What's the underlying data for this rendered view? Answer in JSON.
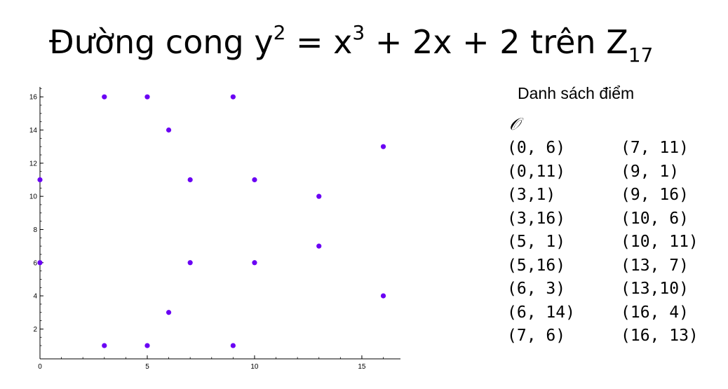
{
  "title": {
    "prefix": "Đường cong y",
    "exp1": "2",
    "mid": " = x",
    "exp2": "3",
    "suffix": " + 2x + 2 trên Z",
    "subscript": "17"
  },
  "list": {
    "heading": "Danh sách điểm",
    "infinity_symbol": "𝒪",
    "left_column": [
      "(0, 6)",
      "(0,11)",
      "(3,1)",
      "(3,16)",
      "(5, 1)",
      "(5,16)",
      "(6, 3)",
      "(6, 14)",
      "(7, 6)"
    ],
    "right_column": [
      "(7, 11)",
      "(9, 1)",
      "(9, 16)",
      "(10, 6)",
      "(10, 11)",
      "(13, 7)",
      "(13,10)",
      "(16, 4)",
      "(16, 13)"
    ]
  },
  "chart_data": {
    "type": "scatter",
    "title": "",
    "xlabel": "",
    "ylabel": "",
    "xlim": [
      0,
      16.8
    ],
    "ylim": [
      0.2,
      16.6
    ],
    "xticks": [
      0,
      5,
      10,
      15
    ],
    "yticks": [
      2,
      4,
      6,
      8,
      10,
      12,
      14,
      16
    ],
    "grid": false,
    "point_color": "#6a00f4",
    "points": [
      {
        "x": 0,
        "y": 6
      },
      {
        "x": 0,
        "y": 11
      },
      {
        "x": 3,
        "y": 1
      },
      {
        "x": 3,
        "y": 16
      },
      {
        "x": 5,
        "y": 1
      },
      {
        "x": 5,
        "y": 16
      },
      {
        "x": 6,
        "y": 3
      },
      {
        "x": 6,
        "y": 14
      },
      {
        "x": 7,
        "y": 6
      },
      {
        "x": 7,
        "y": 11
      },
      {
        "x": 9,
        "y": 1
      },
      {
        "x": 9,
        "y": 16
      },
      {
        "x": 10,
        "y": 6
      },
      {
        "x": 10,
        "y": 11
      },
      {
        "x": 13,
        "y": 7
      },
      {
        "x": 13,
        "y": 10
      },
      {
        "x": 16,
        "y": 4
      },
      {
        "x": 16,
        "y": 13
      }
    ]
  }
}
